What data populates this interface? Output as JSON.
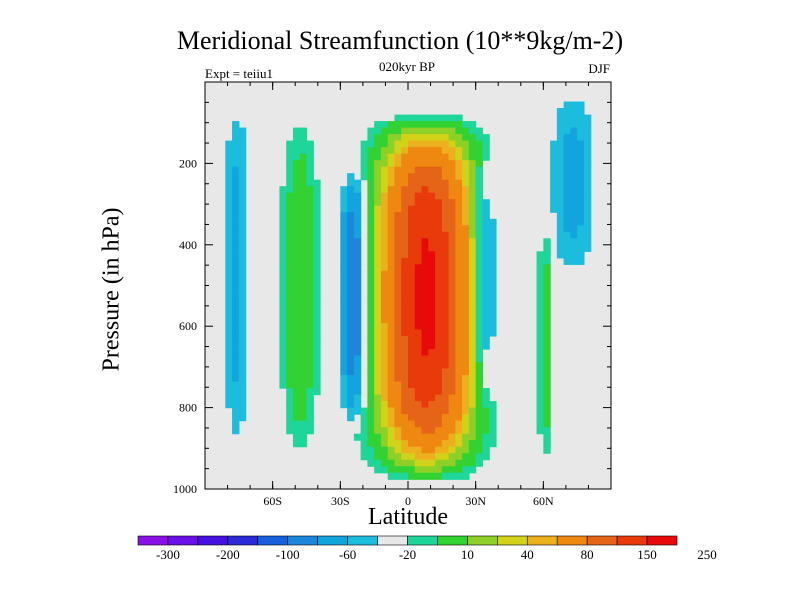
{
  "header": {
    "title": "Meridional Streamfunction (10**9kg/m-2)",
    "expt": "Expt = teiiu1",
    "period": "020kyr BP",
    "season": "DJF"
  },
  "colors": {
    "background": "#ffffff",
    "plot_fill": "#e8e8e8",
    "contour_levels": [
      "#8a10e6",
      "#6a10e6",
      "#4410e0",
      "#2a2ad6",
      "#1660dc",
      "#1a86dc",
      "#12a4dc",
      "#1cbcdc",
      "#e8e8e8",
      "#1ed69a",
      "#32d232",
      "#8ed028",
      "#d2d218",
      "#ecb01e",
      "#ee8810",
      "#e66418",
      "#e83a0a",
      "#e80a0a"
    ]
  },
  "chart_data": {
    "type": "heatmap",
    "title": "Meridional Streamfunction (10**9kg/m-2)",
    "xlabel": "Latitude",
    "ylabel": "Pressure (in hPa)",
    "xlim": [
      -90,
      90
    ],
    "ylim": [
      1000,
      0
    ],
    "x_ticks": [
      {
        "value": -60,
        "label": "60S"
      },
      {
        "value": -30,
        "label": "30S"
      },
      {
        "value": 0,
        "label": "0"
      },
      {
        "value": 30,
        "label": "30N"
      },
      {
        "value": 60,
        "label": "60N"
      }
    ],
    "y_ticks": [
      {
        "value": 200,
        "label": "200"
      },
      {
        "value": 400,
        "label": "400"
      },
      {
        "value": 600,
        "label": "600"
      },
      {
        "value": 800,
        "label": "800"
      },
      {
        "value": 1000,
        "label": "1000"
      }
    ],
    "colorbar_labels": [
      "-300",
      "-200",
      "-100",
      "-60",
      "-20",
      "10",
      "40",
      "80",
      "150",
      "250"
    ],
    "features": [
      {
        "name": "tropical-cell",
        "lat_center": 8,
        "lat_halfwidth": 18,
        "p_top": 70,
        "p_bottom": 990,
        "peak": 260
      },
      {
        "name": "southern-negative-cell",
        "lat_center": -24,
        "lat_halfwidth": 5,
        "p_top": 180,
        "p_bottom": 870,
        "peak": -70
      },
      {
        "name": "northern-negative-cell",
        "lat_center": 34,
        "lat_halfwidth": 5,
        "p_top": 160,
        "p_bottom": 820,
        "peak": -55
      },
      {
        "name": "southern-ferrel-cell",
        "lat_center": -48,
        "lat_halfwidth": 7,
        "p_top": 50,
        "p_bottom": 960,
        "peak": 35
      },
      {
        "name": "northern-ferrel-cell",
        "lat_center": 61,
        "lat_halfwidth": 3,
        "p_top": 300,
        "p_bottom": 960,
        "peak": 30
      },
      {
        "name": "southern-polar-cell",
        "lat_center": -76,
        "lat_halfwidth": 5,
        "p_top": 0,
        "p_bottom": 950,
        "peak": -25
      },
      {
        "name": "northern-polar-cell",
        "lat_center": 73,
        "lat_halfwidth": 9,
        "p_top": 0,
        "p_bottom": 500,
        "peak": -25
      }
    ]
  }
}
